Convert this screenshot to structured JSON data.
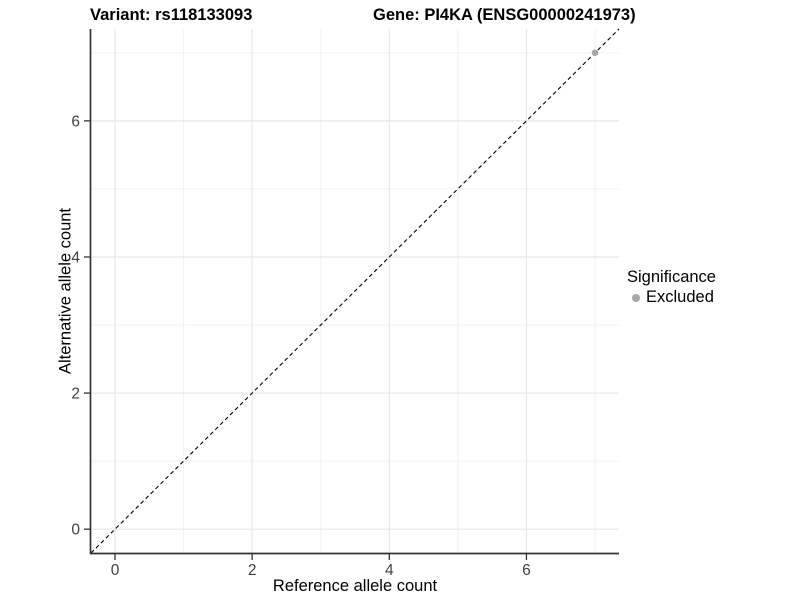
{
  "chart_data": {
    "type": "scatter",
    "titles": {
      "left": "Variant: rs118133093",
      "right": "Gene: PI4KA (ENSG00000241973)"
    },
    "xlabel": "Reference allele count",
    "ylabel": "Alternative allele count",
    "xlim": [
      -0.35,
      7.35
    ],
    "ylim": [
      -0.35,
      7.35
    ],
    "x_ticks": [
      0,
      2,
      4,
      6
    ],
    "y_ticks": [
      0,
      2,
      4,
      6
    ],
    "grid": {
      "major": [
        0,
        2,
        4,
        6
      ],
      "minor": [
        1,
        3,
        5,
        7
      ]
    },
    "identity_line": {
      "slope": 1,
      "intercept": 0,
      "style": "dashed",
      "color": "#000000"
    },
    "points": [
      {
        "x": 7,
        "y": 7,
        "significance": "Excluded",
        "color": "#a8a8a8"
      }
    ],
    "legend": {
      "title": "Significance",
      "position": "right",
      "items": [
        {
          "label": "Excluded",
          "color": "#a8a8a8",
          "marker": "circle"
        }
      ]
    }
  },
  "colors": {
    "panel_background": "#ffffff",
    "grid_major": "#e7e7e7",
    "grid_minor": "#f2f2f2",
    "axis_line": "#333333",
    "tick_mark": "#333333",
    "tick_label": "#404040",
    "title_text": "#000000",
    "point": "#a8a8a8"
  }
}
